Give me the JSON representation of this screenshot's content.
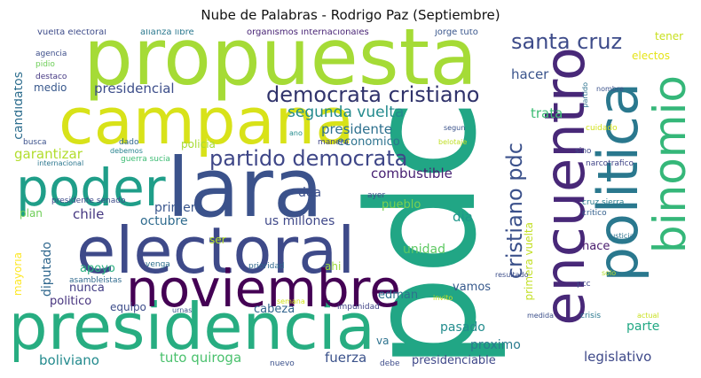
{
  "title": "Nube de Palabras - Rodrigo Paz (Septiembre)",
  "words": [
    {
      "text": "pdc",
      "color": "#21a685"
    },
    {
      "text": "propuesta",
      "color": "#a5db36"
    },
    {
      "text": "campana",
      "color": "#d8e219"
    },
    {
      "text": "lara",
      "color": "#3b528b"
    },
    {
      "text": "electoral",
      "color": "#3e4a89"
    },
    {
      "text": "presidencia",
      "color": "#27ad81"
    },
    {
      "text": "poder",
      "color": "#1f9e89"
    },
    {
      "text": "noviembre",
      "color": "#440154"
    },
    {
      "text": "encuentro",
      "color": "#482878"
    },
    {
      "text": "politica",
      "color": "#2a788e"
    },
    {
      "text": "binomio",
      "color": "#35b779"
    },
    {
      "text": "democrata cristiano",
      "color": "#30336b"
    },
    {
      "text": "partido democrata",
      "color": "#3f4788"
    },
    {
      "text": "santa cruz",
      "color": "#3e4c8a"
    },
    {
      "text": "cristiano pdc",
      "color": "#3b518b"
    },
    {
      "text": "segunda vuelta",
      "color": "#238a8d"
    },
    {
      "text": "presidencial",
      "color": "#3d4e8a"
    },
    {
      "text": "hacer",
      "color": "#3a548c"
    },
    {
      "text": "presidente",
      "color": "#2d708e"
    },
    {
      "text": "economico",
      "color": "#2c728e"
    },
    {
      "text": "trata",
      "color": "#3dbc74"
    },
    {
      "text": "combustible",
      "color": "#482173"
    },
    {
      "text": "garantizar",
      "color": "#b2dd2d"
    },
    {
      "text": "candidatos",
      "color": "#2e6e8e"
    },
    {
      "text": "medio",
      "color": "#38588c"
    },
    {
      "text": "dea",
      "color": "#3c4f8a"
    },
    {
      "text": "chile",
      "color": "#453781"
    },
    {
      "text": "plan",
      "color": "#6ece58"
    },
    {
      "text": "primera",
      "color": "#39558c"
    },
    {
      "text": "octubre",
      "color": "#2f6b8e"
    },
    {
      "text": "us millones",
      "color": "#3f4889"
    },
    {
      "text": "dia",
      "color": "#1f988b"
    },
    {
      "text": "pueblo",
      "color": "#7ad151"
    },
    {
      "text": "unidad",
      "color": "#5ec962"
    },
    {
      "text": "diputado",
      "color": "#31688e"
    },
    {
      "text": "apoyo",
      "color": "#29af7f"
    },
    {
      "text": "nunca",
      "color": "#433e85"
    },
    {
      "text": "politico",
      "color": "#46337e"
    },
    {
      "text": "equipo",
      "color": "#3d4d8a"
    },
    {
      "text": "cabeza",
      "color": "#32658e"
    },
    {
      "text": "edman",
      "color": "#2d718e"
    },
    {
      "text": "vamos",
      "color": "#37598c"
    },
    {
      "text": "pasado",
      "color": "#228c8d"
    },
    {
      "text": "proximo",
      "color": "#2a7b8e"
    },
    {
      "text": "parte",
      "color": "#22a884"
    },
    {
      "text": "hace",
      "color": "#481b6d"
    },
    {
      "text": "legislativo",
      "color": "#3e4989"
    },
    {
      "text": "boliviano",
      "color": "#238a8d"
    },
    {
      "text": "tuto quiroga",
      "color": "#4ac16d"
    },
    {
      "text": "fuerza",
      "color": "#3b528b"
    },
    {
      "text": "presidenciable",
      "color": "#3f4889"
    },
    {
      "text": "mayoria",
      "color": "#fde725"
    },
    {
      "text": "primera vuelta",
      "color": "#c2df23"
    },
    {
      "text": "ser",
      "color": "#b5de2b"
    },
    {
      "text": "ahi",
      "color": "#9bd93c"
    },
    {
      "text": "va",
      "color": "#2c728e"
    },
    {
      "text": "tener",
      "color": "#c8e020"
    },
    {
      "text": "electos",
      "color": "#e5e419"
    },
    {
      "text": "policia",
      "color": "#a8db34"
    },
    {
      "text": "vuelta electoral",
      "color": "#3e4c8a"
    },
    {
      "text": "alianza libre",
      "color": "#2a788e"
    },
    {
      "text": "organismos internacionales",
      "color": "#482475"
    },
    {
      "text": "jorge tuto",
      "color": "#39568c"
    },
    {
      "text": "agencia",
      "color": "#3d4e8a"
    },
    {
      "text": "pidio",
      "color": "#6ece58"
    },
    {
      "text": "destaco",
      "color": "#453882"
    },
    {
      "text": "busca",
      "color": "#3b518b"
    },
    {
      "text": "dado",
      "color": "#31678e"
    },
    {
      "text": "debemos",
      "color": "#26828e"
    },
    {
      "text": "internacional",
      "color": "#2a768e"
    },
    {
      "text": "guerra sucia",
      "color": "#3dbc74"
    },
    {
      "text": "ano",
      "color": "#238a8d"
    },
    {
      "text": "manera",
      "color": "#3f4788"
    },
    {
      "text": "segun",
      "color": "#3b528b"
    },
    {
      "text": "belotaje",
      "color": "#c0df25"
    },
    {
      "text": "sino",
      "color": "#3e4989"
    },
    {
      "text": "cuidado",
      "color": "#d2e21b"
    },
    {
      "text": "narcotrafico",
      "color": "#404588"
    },
    {
      "text": "partido",
      "color": "#2c728e"
    },
    {
      "text": "nombre",
      "color": "#3b528b"
    },
    {
      "text": "ayer",
      "color": "#3e4a89"
    },
    {
      "text": "cruz sierra",
      "color": "#287c8e"
    },
    {
      "text": "critico",
      "color": "#35608d"
    },
    {
      "text": "presidente senado",
      "color": "#3e4c8a"
    },
    {
      "text": "venga",
      "color": "#2d708e"
    },
    {
      "text": "prioridad",
      "color": "#31688e"
    },
    {
      "text": "resultado",
      "color": "#3d4e8a"
    },
    {
      "text": "justicia",
      "color": "#2c728e"
    },
    {
      "text": "pcc",
      "color": "#3f4788"
    },
    {
      "text": "solo",
      "color": "#b5de2b"
    },
    {
      "text": "asambleistas",
      "color": "#306a8e"
    },
    {
      "text": "urnas",
      "color": "#3a548c"
    },
    {
      "text": "impunidad",
      "color": "#414487"
    },
    {
      "text": "invito",
      "color": "#c8e020"
    },
    {
      "text": "semana",
      "color": "#d2e21b"
    },
    {
      "text": "medida",
      "color": "#3c4f8a"
    },
    {
      "text": "crisis",
      "color": "#2a788e"
    },
    {
      "text": "actual",
      "color": "#c8e020"
    },
    {
      "text": "nuevo",
      "color": "#3b518b"
    },
    {
      "text": "debe",
      "color": "#3e4c8a"
    }
  ]
}
